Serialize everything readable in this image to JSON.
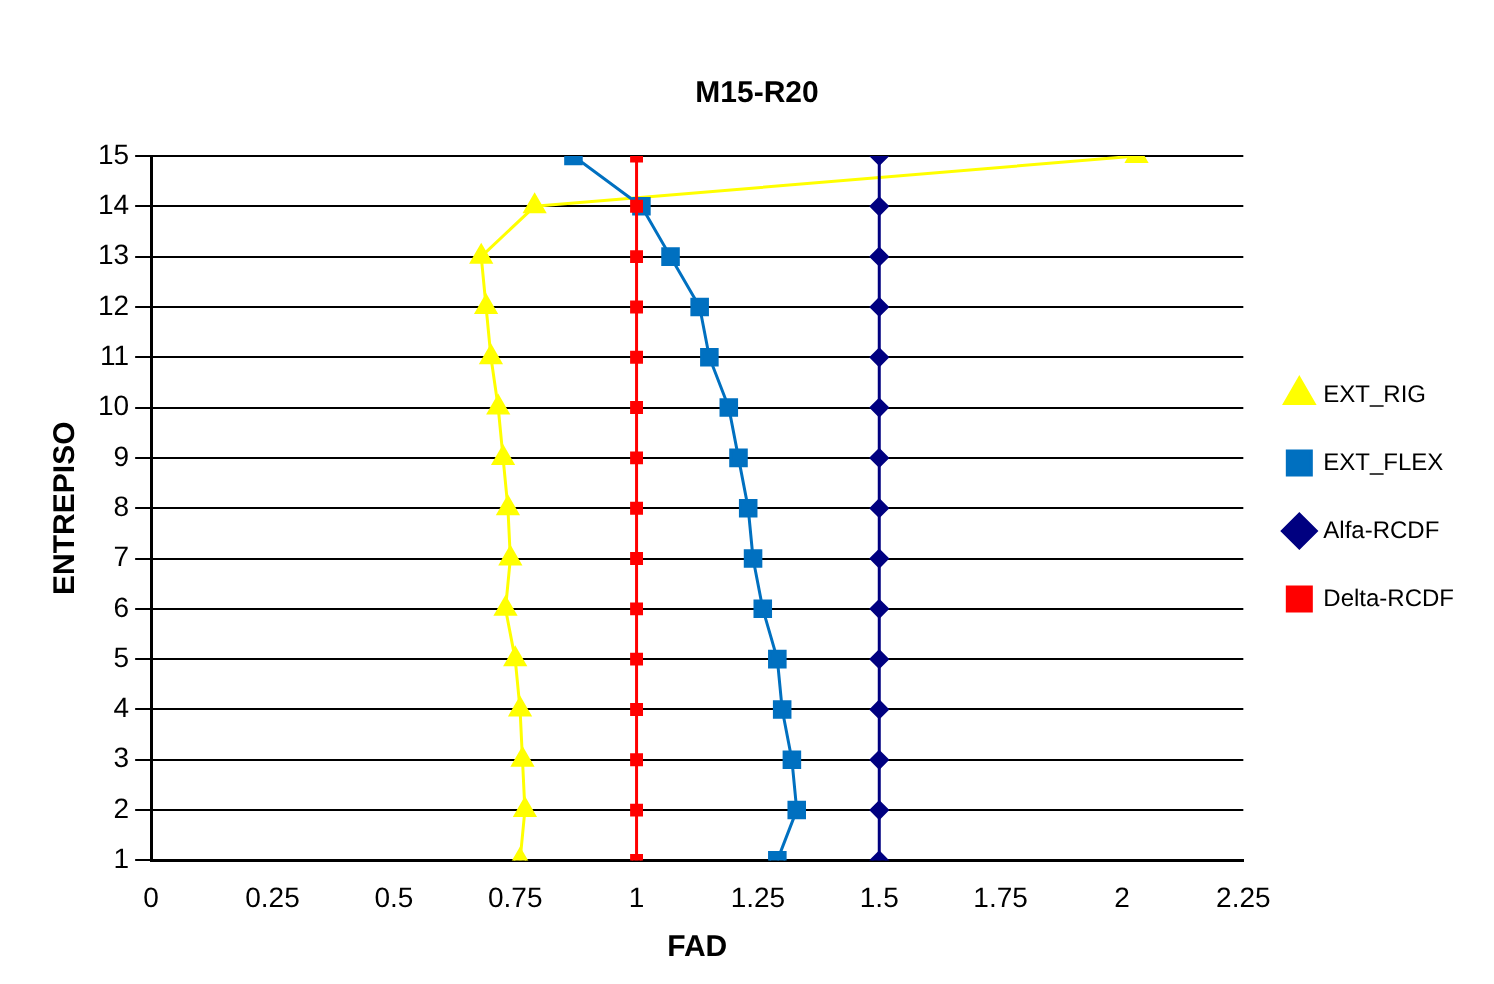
{
  "chart_data": {
    "type": "line",
    "title": "M15-R20",
    "xlabel": "FAD",
    "ylabel": "ENTREPISO",
    "xlim": [
      0,
      2.25
    ],
    "xticks": [
      0,
      0.25,
      0.5,
      0.75,
      1,
      1.25,
      1.5,
      1.75,
      2,
      2.25
    ],
    "ylim": [
      1,
      15
    ],
    "yticks": [
      1,
      2,
      3,
      4,
      5,
      6,
      7,
      8,
      9,
      10,
      11,
      12,
      13,
      14,
      15
    ],
    "grid": "y",
    "legend": "right",
    "series": [
      {
        "name": "EXT_RIG",
        "color": "#ffff00",
        "marker": "triangle",
        "x": [
          0.76,
          0.77,
          0.765,
          0.76,
          0.75,
          0.73,
          0.74,
          0.735,
          0.725,
          0.715,
          0.7,
          0.69,
          0.68,
          0.79,
          2.03
        ],
        "values": [
          1,
          2,
          3,
          4,
          5,
          6,
          7,
          8,
          9,
          10,
          11,
          12,
          13,
          14,
          15
        ]
      },
      {
        "name": "EXT_FLEX",
        "color": "#0070c0",
        "marker": "square",
        "x": [
          1.29,
          1.33,
          1.32,
          1.3,
          1.29,
          1.26,
          1.24,
          1.23,
          1.21,
          1.19,
          1.15,
          1.13,
          1.07,
          1.01,
          0.87
        ],
        "values": [
          1,
          2,
          3,
          4,
          5,
          6,
          7,
          8,
          9,
          10,
          11,
          12,
          13,
          14,
          15
        ]
      },
      {
        "name": "Alfa-RCDF",
        "color": "#000080",
        "marker": "diamond",
        "x": [
          1.5,
          1.5,
          1.5,
          1.5,
          1.5,
          1.5,
          1.5,
          1.5,
          1.5,
          1.5,
          1.5,
          1.5,
          1.5,
          1.5,
          1.5
        ],
        "values": [
          1,
          2,
          3,
          4,
          5,
          6,
          7,
          8,
          9,
          10,
          11,
          12,
          13,
          14,
          15
        ]
      },
      {
        "name": "Delta-RCDF",
        "color": "#ff0000",
        "marker": "square",
        "x": [
          1,
          1,
          1,
          1,
          1,
          1,
          1,
          1,
          1,
          1,
          1,
          1,
          1,
          1,
          1
        ],
        "values": [
          1,
          2,
          3,
          4,
          5,
          6,
          7,
          8,
          9,
          10,
          11,
          12,
          13,
          14,
          15
        ]
      }
    ]
  }
}
